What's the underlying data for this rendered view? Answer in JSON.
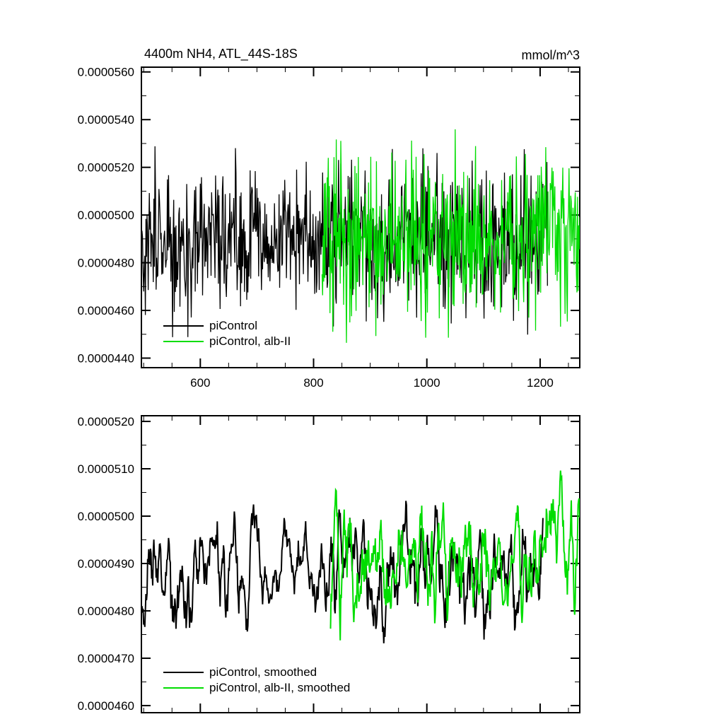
{
  "page": {
    "background": "#ffffff"
  },
  "chart_data": [
    {
      "type": "line",
      "panel": "top",
      "title": "4400m NH4, ATL_44S-18S",
      "units_label": "mmol/m^3",
      "xlim": [
        496,
        1270
      ],
      "ylim": [
        4.36e-05,
        5.62e-05
      ],
      "x_major_ticks": [
        600,
        800,
        1000,
        1200
      ],
      "x_tick_labels": [
        "600",
        "800",
        "1000",
        "1200"
      ],
      "x_minor_step": 50,
      "y_ticks": [
        {
          "value": 4.4e-05,
          "label": "0.0000440"
        },
        {
          "value": 4.6e-05,
          "label": "0.0000460"
        },
        {
          "value": 4.8e-05,
          "label": "0.0000480"
        },
        {
          "value": 5e-05,
          "label": "0.0000500"
        },
        {
          "value": 5.2e-05,
          "label": "0.0000520"
        },
        {
          "value": 5.4e-05,
          "label": "0.0000540"
        },
        {
          "value": 5.6e-05,
          "label": "0.0000560"
        }
      ],
      "y_minor_step": 1e-06,
      "grid": false,
      "x_labels_visible": true,
      "legend": {
        "position": "lower-left",
        "entries": [
          {
            "label": "piControl",
            "color": "#000000"
          },
          {
            "label": "piControl, alb-II",
            "color": "#00dd00"
          }
        ]
      },
      "series": [
        {
          "name": "piControl",
          "color": "#000000",
          "line_width": 1.3,
          "x_start": 497,
          "x_end": 1213,
          "points": 717,
          "mean_start": 4.9e-05,
          "mean_end": 4.89e-05,
          "std": 1.5e-06,
          "seed": 101,
          "smooth_window": 1
        },
        {
          "name": "piControl, alb-II",
          "color": "#00dd00",
          "line_width": 1.3,
          "x_start": 815,
          "x_end": 1270,
          "points": 456,
          "mean_start": 4.88e-05,
          "mean_end": 4.97e-05,
          "std": 1.7e-06,
          "seed": 202,
          "smooth_window": 1
        }
      ]
    },
    {
      "type": "line",
      "panel": "bottom",
      "title": "",
      "units_label": "",
      "xlim": [
        496,
        1270
      ],
      "ylim": [
        4.585e-05,
        5.212e-05
      ],
      "x_major_ticks": [
        600,
        800,
        1000,
        1200
      ],
      "x_tick_labels": [
        "600",
        "800",
        "1000",
        "1200"
      ],
      "x_minor_step": 50,
      "y_ticks": [
        {
          "value": 4.6e-05,
          "label": "0.0000460"
        },
        {
          "value": 4.7e-05,
          "label": "0.0000470"
        },
        {
          "value": 4.8e-05,
          "label": "0.0000480"
        },
        {
          "value": 4.9e-05,
          "label": "0.0000490"
        },
        {
          "value": 5e-05,
          "label": "0.0000500"
        },
        {
          "value": 5.1e-05,
          "label": "0.0000510"
        },
        {
          "value": 5.2e-05,
          "label": "0.0000520"
        }
      ],
      "y_minor_step": 5e-07,
      "grid": false,
      "x_labels_visible": false,
      "legend": {
        "position": "lower-left",
        "entries": [
          {
            "label": "piControl, smoothed",
            "color": "#000000"
          },
          {
            "label": "piControl, alb-II, smoothed",
            "color": "#00dd00"
          }
        ]
      },
      "series": [
        {
          "name": "piControl, smoothed",
          "color": "#000000",
          "line_width": 2,
          "x_start": 497,
          "x_end": 1205,
          "points": 709,
          "mean_start": 4.89e-05,
          "mean_end": 4.88e-05,
          "std": 1.5e-06,
          "seed": 101,
          "smooth_window": 7
        },
        {
          "name": "piControl, alb-II, smoothed",
          "color": "#00dd00",
          "line_width": 2,
          "x_start": 830,
          "x_end": 1270,
          "points": 441,
          "mean_start": 4.88e-05,
          "mean_end": 4.97e-05,
          "std": 1.7e-06,
          "seed": 202,
          "smooth_window": 7
        }
      ]
    }
  ]
}
